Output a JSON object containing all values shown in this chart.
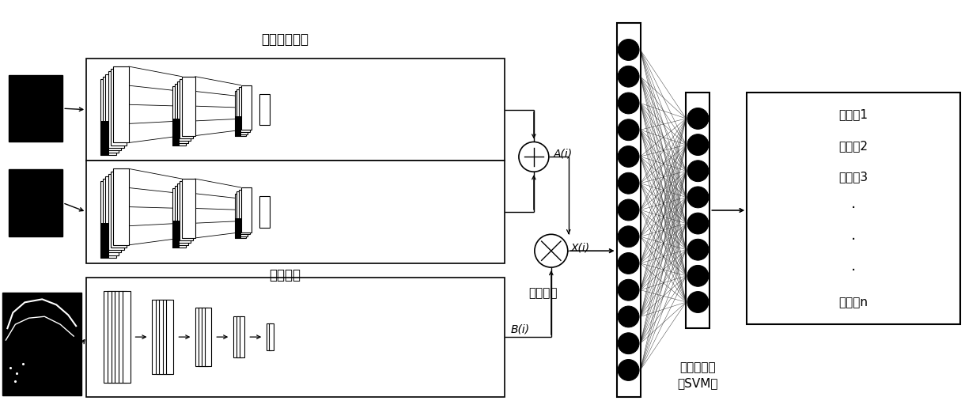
{
  "bg_color": "#ffffff",
  "label_shallow": "两路浅层网络",
  "label_deep": "深层网络",
  "label_fusion": "二阶融合",
  "label_svm": "支持向量机\n（SVM）",
  "label_Ai": "A(i)",
  "label_Bi": "B(i)",
  "label_Xi": "X(i)",
  "output_labels": [
    "猪编号1",
    "猪编号2",
    "猪编号3",
    "·",
    "·",
    "·",
    "猪编号n"
  ],
  "font_size_chinese": 11,
  "font_size_italic": 10
}
